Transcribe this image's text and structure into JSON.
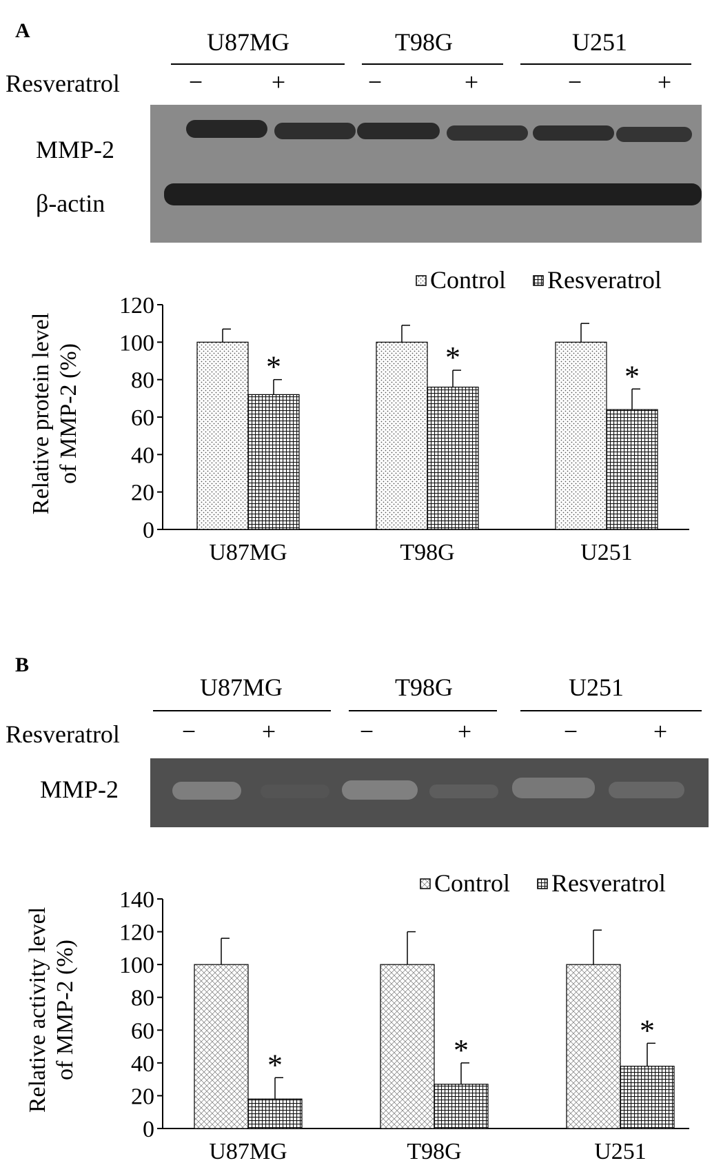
{
  "panels": [
    {
      "letter": "A",
      "cell_lines": [
        "U87MG",
        "T98G",
        "U251"
      ],
      "treatment_label": "Resveratrol",
      "signs": [
        "−",
        "+",
        "−",
        "+",
        "−",
        "+"
      ],
      "blot_labels": [
        "MMP-2",
        "β-actin"
      ]
    },
    {
      "letter": "B",
      "cell_lines": [
        "U87MG",
        "T98G",
        "U251"
      ],
      "treatment_label": "Resveratrol",
      "signs": [
        "−",
        "+",
        "−",
        "+",
        "−",
        "+"
      ],
      "blot_labels": [
        "MMP-2"
      ]
    }
  ],
  "chart_data": [
    {
      "type": "bar",
      "title": "",
      "xlabel": "",
      "ylabel": "Relative protein level of MMP-2 (%)",
      "ylim": [
        0,
        120
      ],
      "yticks": [
        0,
        20,
        40,
        60,
        80,
        100,
        120
      ],
      "categories": [
        "U87MG",
        "T98G",
        "U251"
      ],
      "series": [
        {
          "name": "Control",
          "values": [
            100,
            100,
            100
          ],
          "errors": [
            7,
            9,
            10
          ]
        },
        {
          "name": "Resveratrol",
          "values": [
            72,
            76,
            64
          ],
          "errors": [
            8,
            9,
            11
          ]
        }
      ],
      "significance": [
        "*",
        "*",
        "*"
      ],
      "legend": "top-right"
    },
    {
      "type": "bar",
      "title": "",
      "xlabel": "",
      "ylabel": "Relative activity level of MMP-2 (%)",
      "ylim": [
        0,
        140
      ],
      "yticks": [
        0,
        20,
        40,
        60,
        80,
        100,
        120,
        140
      ],
      "categories": [
        "U87MG",
        "T98G",
        "U251"
      ],
      "series": [
        {
          "name": "Control",
          "values": [
            100,
            100,
            100
          ],
          "errors": [
            16,
            20,
            21
          ]
        },
        {
          "name": "Resveratrol",
          "values": [
            18,
            27,
            38
          ],
          "errors": [
            13,
            13,
            14
          ]
        }
      ],
      "significance": [
        "*",
        "*",
        "*"
      ],
      "legend": "top-right"
    }
  ]
}
